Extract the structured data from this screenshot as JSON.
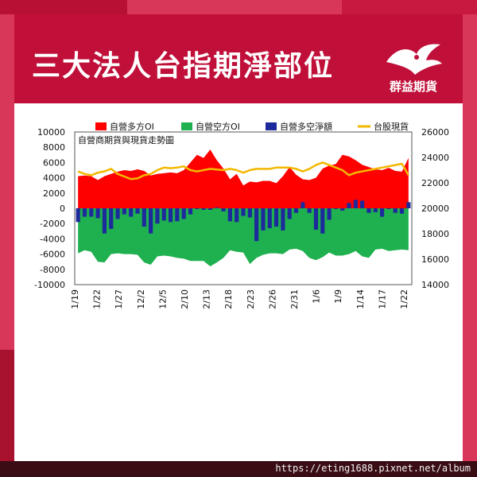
{
  "header": {
    "title": "三大法人台指期淨部位",
    "brand": "群益期貨"
  },
  "footer": {
    "url": "https://eting1688.pixnet.net/album"
  },
  "colors": {
    "long": "#ff0000",
    "short": "#1fb04f",
    "net": "#1d2a9c",
    "index": "#f2b800",
    "header": "#c0103a"
  },
  "chart_data": {
    "type": "bar",
    "subtitle": "自營商期貨與現貨走勢圖",
    "legend": [
      "自營多方OI",
      "自營空方OI",
      "自營多空淨額",
      "台股現貨"
    ],
    "x_ticks": [
      "11/19",
      "11/22",
      "11/27",
      "12/2",
      "12/5",
      "12/10",
      "12/13",
      "12/18",
      "12/23",
      "12/26",
      "12/31",
      "1/6",
      "1/9",
      "1/14",
      "1/17",
      "1/22"
    ],
    "y_left": {
      "min": -10000,
      "max": 10000,
      "ticks": [
        10000,
        8000,
        6000,
        4000,
        2000,
        0,
        -2000,
        -4000,
        -6000,
        -8000,
        -10000
      ]
    },
    "y_right": {
      "min": 14000,
      "max": 26000,
      "ticks": [
        26000,
        24000,
        22000,
        20000,
        18000,
        16000,
        14000
      ]
    },
    "series": [
      {
        "name": "自營多方OI",
        "type": "area",
        "values": [
          4200,
          4300,
          4200,
          3700,
          4200,
          4500,
          4800,
          5000,
          4900,
          5100,
          4900,
          4300,
          4500,
          4600,
          4700,
          4600,
          5000,
          6000,
          7000,
          6600,
          7700,
          6300,
          5200,
          3800,
          4500,
          3000,
          3500,
          3400,
          3600,
          3600,
          3300,
          4200,
          5400,
          4400,
          3800,
          3700,
          4000,
          5200,
          5600,
          5800,
          7000,
          6800,
          6300,
          5700,
          5400,
          5100,
          5000,
          5300,
          4900,
          4800,
          6600
        ]
      },
      {
        "name": "自營空方OI",
        "type": "area",
        "values": [
          -5900,
          -5500,
          -5700,
          -7000,
          -7100,
          -6000,
          -5900,
          -6000,
          -6000,
          -6100,
          -7100,
          -7400,
          -6300,
          -6200,
          -6300,
          -6500,
          -6600,
          -6900,
          -6900,
          -6900,
          -7600,
          -7100,
          -6500,
          -5500,
          -5700,
          -5800,
          -7300,
          -6500,
          -6100,
          -5900,
          -5900,
          -6000,
          -5400,
          -5300,
          -5600,
          -6500,
          -6800,
          -6400,
          -5800,
          -6200,
          -6200,
          -6000,
          -5600,
          -6300,
          -6500,
          -5400,
          -5300,
          -5600,
          -5500,
          -5400,
          -5500
        ]
      },
      {
        "name": "自營多空淨額",
        "type": "bar",
        "values": [
          -1800,
          -1100,
          -1100,
          -1300,
          -3300,
          -2700,
          -1400,
          -800,
          -1100,
          -700,
          -2400,
          -3300,
          -2000,
          -1600,
          -1800,
          -1700,
          -1400,
          -800,
          -100,
          -200,
          -200,
          100,
          -400,
          -1700,
          -1800,
          -1000,
          -1200,
          -4300,
          -2900,
          -2600,
          -2400,
          -2900,
          -1400,
          -600,
          800,
          -600,
          -2800,
          -3300,
          -1500,
          -100,
          -300,
          700,
          1100,
          1000,
          -600,
          -500,
          -1100,
          -100,
          -600,
          -700,
          800
        ]
      },
      {
        "name": "台股現貨",
        "type": "line",
        "axis": "right",
        "values": [
          22900,
          22700,
          22600,
          22800,
          22900,
          23100,
          22700,
          22500,
          22300,
          22350,
          22600,
          22700,
          23000,
          23200,
          23150,
          23200,
          23300,
          23000,
          22900,
          23000,
          23100,
          23050,
          23000,
          23100,
          23000,
          22800,
          23000,
          23100,
          23100,
          23100,
          23200,
          23200,
          23200,
          23100,
          22900,
          23100,
          23400,
          23600,
          23400,
          23200,
          23000,
          22600,
          22800,
          22900,
          23000,
          23100,
          23200,
          23300,
          23400,
          23500,
          22600
        ]
      }
    ]
  }
}
